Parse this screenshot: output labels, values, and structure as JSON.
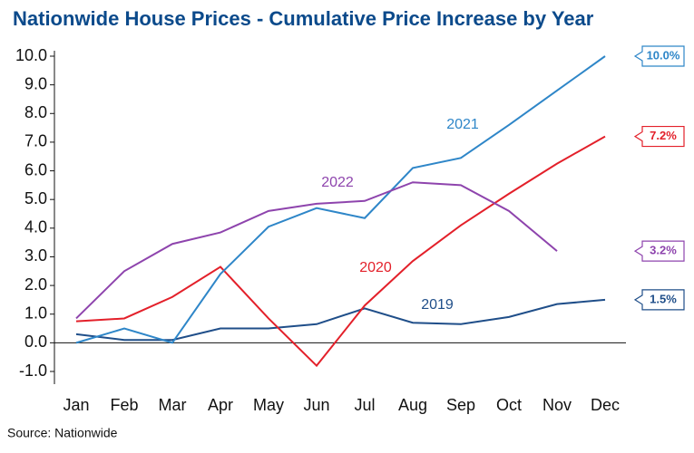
{
  "chart_data": {
    "type": "line",
    "title": "Nationwide House Prices - Cumulative Price Increase by Year",
    "source": "Source: Nationwide",
    "categories": [
      "Jan",
      "Feb",
      "Mar",
      "Apr",
      "May",
      "Jun",
      "Jul",
      "Aug",
      "Sep",
      "Oct",
      "Nov",
      "Dec"
    ],
    "series": [
      {
        "name": "2019",
        "color": "#1f4e89",
        "values": [
          0.3,
          0.1,
          0.1,
          0.5,
          0.5,
          0.65,
          1.2,
          0.7,
          0.65,
          0.9,
          1.35,
          1.5
        ],
        "value_labels": [
          null,
          null,
          null,
          null,
          null,
          null,
          null,
          null,
          null,
          null,
          null,
          "1.5%"
        ]
      },
      {
        "name": "2020",
        "color": "#e3202a",
        "values": [
          0.75,
          0.85,
          1.6,
          2.65,
          0.85,
          -0.8,
          1.3,
          2.85,
          4.1,
          5.2,
          6.25,
          7.2
        ],
        "value_labels": [
          null,
          null,
          null,
          null,
          null,
          null,
          null,
          null,
          null,
          null,
          null,
          "7.2%"
        ]
      },
      {
        "name": "2021",
        "color": "#2e86c8",
        "values": [
          0.0,
          0.5,
          0.0,
          2.4,
          4.05,
          4.7,
          4.35,
          6.1,
          6.45,
          7.6,
          8.8,
          10.0
        ],
        "value_labels": [
          null,
          null,
          null,
          null,
          null,
          null,
          null,
          null,
          null,
          null,
          null,
          "10.0%"
        ]
      },
      {
        "name": "2022",
        "color": "#8e44ad",
        "values": [
          0.85,
          2.5,
          3.45,
          3.85,
          4.6,
          4.85,
          4.95,
          5.6,
          5.5,
          4.6,
          3.2,
          null
        ],
        "value_labels": [
          null,
          null,
          null,
          null,
          null,
          null,
          null,
          null,
          null,
          null,
          "3.2%",
          null
        ]
      }
    ],
    "ylim": [
      -1,
      10
    ],
    "yticks": [
      {
        "value": -1,
        "label": "-1.0"
      },
      {
        "value": 0,
        "label": "0.0"
      },
      {
        "value": 1,
        "label": "1.0"
      },
      {
        "value": 2,
        "label": "2.0"
      },
      {
        "value": 3,
        "label": "3.0"
      },
      {
        "value": 4,
        "label": "4.0"
      },
      {
        "value": 5,
        "label": "5.0"
      },
      {
        "value": 6,
        "label": "6.0"
      },
      {
        "value": 7,
        "label": "7.0"
      },
      {
        "value": 8,
        "label": "8.0"
      },
      {
        "value": 9,
        "label": "9.0"
      },
      {
        "value": 10,
        "label": "10.0"
      }
    ],
    "grid": false
  }
}
